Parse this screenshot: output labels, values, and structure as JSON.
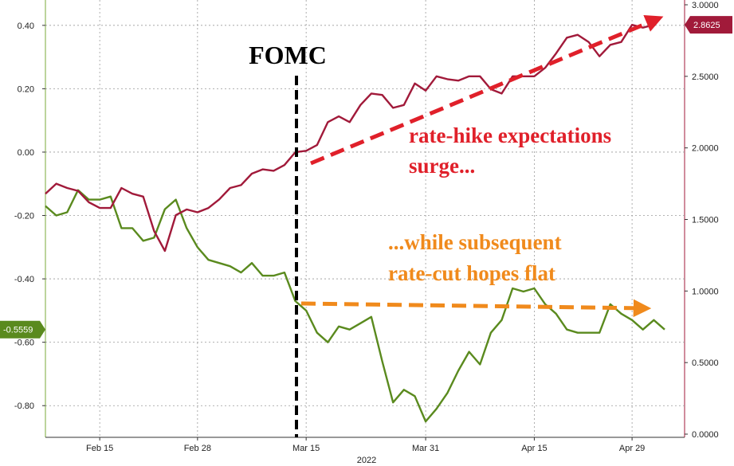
{
  "chart_data": {
    "type": "line",
    "title": "",
    "xlabel": "2022",
    "x_ticks": [
      "Feb 15",
      "Feb 28",
      "Mar 15",
      "Mar 31",
      "Apr 15",
      "Apr 29"
    ],
    "x_tick_positions": [
      5,
      14,
      24,
      35,
      45,
      54
    ],
    "left_axis": {
      "ylim": [
        -0.9,
        0.48
      ],
      "ticks": [
        0.4,
        0.2,
        0.0,
        -0.2,
        -0.4,
        -0.6,
        -0.8
      ],
      "tick_labels": [
        "0.40",
        "0.20",
        "0.00",
        "-0.20",
        "-0.40",
        "-0.60",
        "-0.80"
      ]
    },
    "right_axis": {
      "ylim": [
        0,
        3.0
      ],
      "ticks": [
        3.0,
        2.5,
        2.0,
        1.5,
        1.0,
        0.5,
        0.0
      ],
      "tick_labels": [
        "3.0000",
        "2.5000",
        "2.0000",
        "1.5000",
        "1.0000",
        "0.5000",
        "0.0000"
      ]
    },
    "series": [
      {
        "name": "",
        "axis": "left",
        "color": "#5a8a1e",
        "last_value_label": "-0.5559",
        "values": [
          -0.17,
          -0.2,
          -0.19,
          -0.12,
          -0.15,
          -0.15,
          -0.14,
          -0.24,
          -0.24,
          -0.28,
          -0.27,
          -0.18,
          -0.15,
          -0.24,
          -0.3,
          -0.34,
          -0.35,
          -0.36,
          -0.38,
          -0.35,
          -0.39,
          -0.39,
          -0.38,
          -0.47,
          -0.5,
          -0.57,
          -0.6,
          -0.55,
          -0.56,
          -0.54,
          -0.52,
          -0.66,
          -0.79,
          -0.75,
          -0.77,
          -0.85,
          -0.81,
          -0.76,
          -0.69,
          -0.63,
          -0.67,
          -0.57,
          -0.53,
          -0.43,
          -0.44,
          -0.43,
          -0.48,
          -0.51,
          -0.56,
          -0.57,
          -0.57,
          -0.57,
          -0.48,
          -0.51,
          -0.53,
          -0.56,
          -0.53,
          -0.56
        ]
      },
      {
        "name": "",
        "axis": "right",
        "color": "#a11a3a",
        "last_value_label": "2.8625",
        "values": [
          1.68,
          1.75,
          1.72,
          1.7,
          1.62,
          1.58,
          1.58,
          1.72,
          1.68,
          1.66,
          1.42,
          1.28,
          1.53,
          1.57,
          1.55,
          1.58,
          1.64,
          1.72,
          1.74,
          1.82,
          1.85,
          1.84,
          1.88,
          1.97,
          1.98,
          2.02,
          2.18,
          2.22,
          2.18,
          2.3,
          2.38,
          2.37,
          2.28,
          2.3,
          2.45,
          2.4,
          2.5,
          2.48,
          2.47,
          2.5,
          2.5,
          2.41,
          2.38,
          2.5,
          2.5,
          2.5,
          2.56,
          2.66,
          2.77,
          2.79,
          2.74,
          2.64,
          2.72,
          2.74,
          2.86,
          2.84,
          2.86
        ]
      }
    ],
    "annotations": {
      "fomc_label": "FOMC",
      "fomc_x": 24,
      "text_hike_line1": "rate-hike expectations",
      "text_hike_line2": "surge...",
      "text_cut_line1": "...while subsequent",
      "text_cut_line2": "rate-cut hopes flat",
      "hike_color": "#e0202a",
      "cut_color": "#f08a1c"
    },
    "grid": true,
    "legend": "none"
  }
}
